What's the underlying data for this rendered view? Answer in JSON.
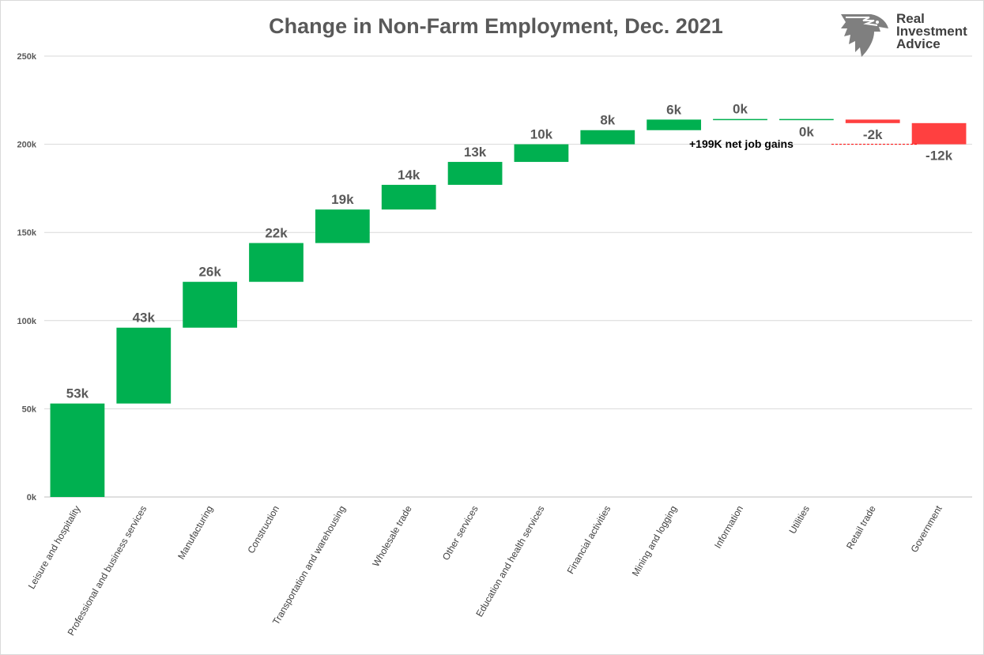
{
  "chart_data": {
    "type": "waterfall",
    "title": "Change in Non-Farm Employment, Dec. 2021",
    "categories": [
      "Leisure and hospitality",
      "Professional and business services",
      "Manufacturing",
      "Construction",
      "Transportation and warehousing",
      "Wholesale trade",
      "Other services",
      "Education and health services",
      "Financial activities",
      "Mining and logging",
      "Information",
      "Utilities",
      "Retail trade",
      "Government"
    ],
    "values": [
      53,
      43,
      26,
      22,
      19,
      14,
      13,
      10,
      8,
      6,
      0,
      0,
      -2,
      -12
    ],
    "data_labels": [
      "53k",
      "43k",
      "26k",
      "22k",
      "19k",
      "14k",
      "13k",
      "10k",
      "8k",
      "6k",
      "0k",
      "0k",
      "-2k",
      "-12k"
    ],
    "ylim": [
      0,
      250
    ],
    "yticks": [
      0,
      50,
      100,
      150,
      200,
      250
    ],
    "ytick_labels": [
      "0k",
      "50k",
      "100k",
      "150k",
      "200k",
      "250k"
    ],
    "unit": "thousands of jobs",
    "grid": true,
    "colors": {
      "increase": "#00b050",
      "decrease": "#ff4040",
      "annotation_line": "#ff0000"
    },
    "annotation": "+199K net job gains"
  },
  "logo": {
    "line1": "Real",
    "line2": "Investment",
    "line3": "Advice"
  }
}
